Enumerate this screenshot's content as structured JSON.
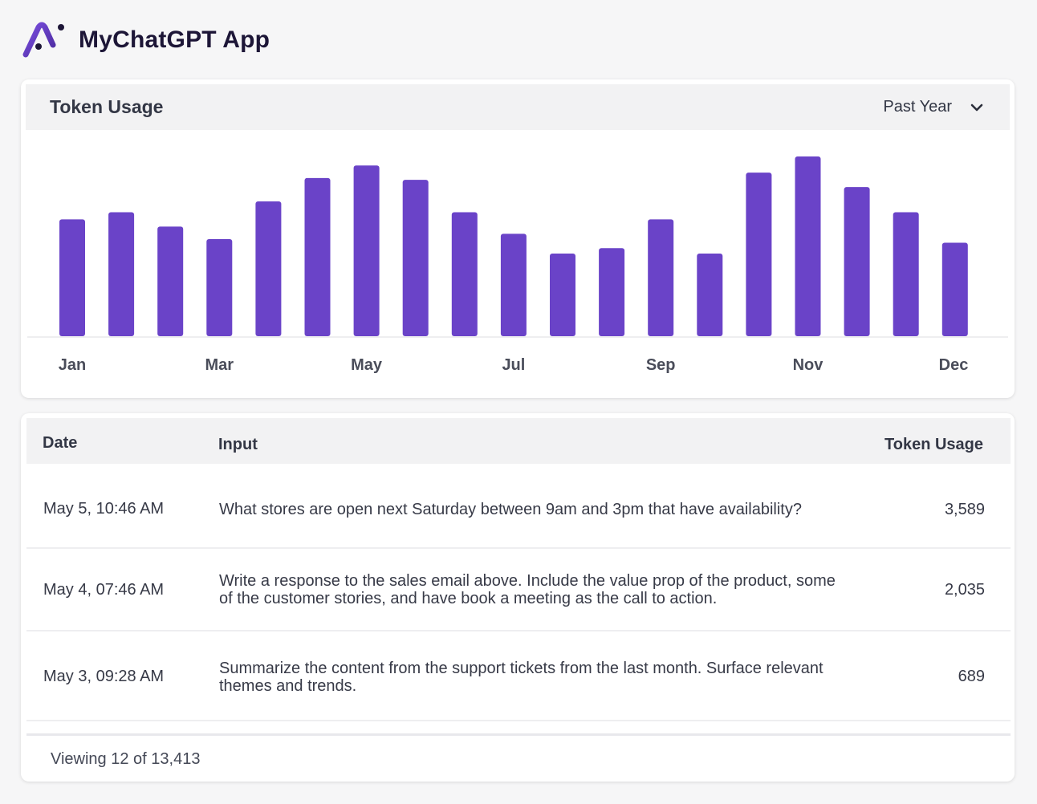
{
  "app": {
    "title": "MyChatGPT App",
    "logo_icon": "ai-logo-icon"
  },
  "colors": {
    "bar": "#6a43c8",
    "brand_dark": "#1d1637",
    "header_bg": "#f2f2f3"
  },
  "chart_panel": {
    "title": "Token Usage",
    "range_value": "Past Year",
    "range_icon": "chevron-down-icon"
  },
  "chart_data": {
    "type": "bar",
    "title": "",
    "xlabel": "",
    "ylabel": "",
    "ylim": [
      0,
      100
    ],
    "tick_labels": [
      {
        "label": "Jan",
        "index": 0
      },
      {
        "label": "Mar",
        "index": 3
      },
      {
        "label": "May",
        "index": 6
      },
      {
        "label": "Jul",
        "index": 9
      },
      {
        "label": "Sep",
        "index": 12
      },
      {
        "label": "Nov",
        "index": 15
      },
      {
        "label": "Dec",
        "index": 18
      }
    ],
    "values": [
      65,
      69,
      61,
      54,
      75,
      88,
      95,
      87,
      69,
      57,
      46,
      49,
      65,
      46,
      91,
      100,
      83,
      69,
      52
    ],
    "grid": false
  },
  "table": {
    "columns": {
      "date": "Date",
      "input": "Input",
      "usage": "Token Usage"
    },
    "rows": [
      {
        "date": "May 5, 10:46 AM",
        "input": "What stores are open next Saturday between 9am and 3pm that have availability?",
        "usage": "3,589"
      },
      {
        "date": "May 4, 07:46 AM",
        "input": "Write a response to the sales email above. Include the value prop of the product, some of the customer stories, and have book a meeting as the call to action.",
        "usage": "2,035"
      },
      {
        "date": "May 3, 09:28 AM",
        "input": "Summarize the content from the support tickets from the last month. Surface relevant themes and trends.",
        "usage": "689"
      }
    ],
    "footer": "Viewing 12 of 13,413"
  }
}
